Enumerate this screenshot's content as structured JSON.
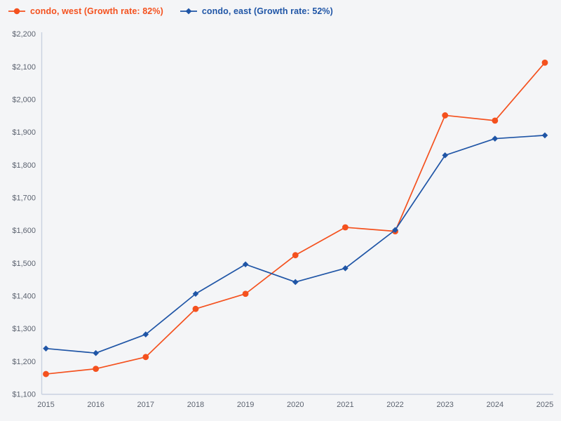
{
  "page": {
    "background": "#f4f5f7",
    "axis_color": "#c9d1e0",
    "tick_label_color": "#5c6370"
  },
  "legend": {
    "items": [
      {
        "id": "west",
        "label": "condo, west (Growth rate: 82%)",
        "color": "#f4511e",
        "marker": "circle"
      },
      {
        "id": "east",
        "label": "condo, east (Growth rate: 52%)",
        "color": "#1f55a6",
        "marker": "diamond"
      }
    ]
  },
  "chart_data": {
    "type": "line",
    "title": "",
    "xlabel": "",
    "ylabel": "",
    "grid": false,
    "legend_position": "top-left",
    "categories": [
      "2015",
      "2016",
      "2017",
      "2018",
      "2019",
      "2020",
      "2021",
      "2022",
      "2023",
      "2024",
      "2025"
    ],
    "series": [
      {
        "id": "west",
        "name": "condo, west (Growth rate: 82%)",
        "color": "#f4511e",
        "marker": "circle",
        "values": [
          1162,
          1178,
          1214,
          1361,
          1407,
          1525,
          1610,
          1598,
          1952,
          1936,
          2113
        ]
      },
      {
        "id": "east",
        "name": "condo, east (Growth rate: 52%)",
        "color": "#1f55a6",
        "marker": "diamond",
        "values": [
          1240,
          1226,
          1283,
          1407,
          1497,
          1443,
          1485,
          1602,
          1830,
          1881,
          1891
        ]
      }
    ],
    "ylim": [
      1100,
      2200
    ],
    "y_tick_step": 100,
    "y_tick_labels": [
      "$1,100",
      "$1,200",
      "$1,300",
      "$1,400",
      "$1,500",
      "$1,600",
      "$1,700",
      "$1,800",
      "$1,900",
      "$2,000",
      "$2,100",
      "$2,200"
    ],
    "currency_prefix": "$"
  }
}
